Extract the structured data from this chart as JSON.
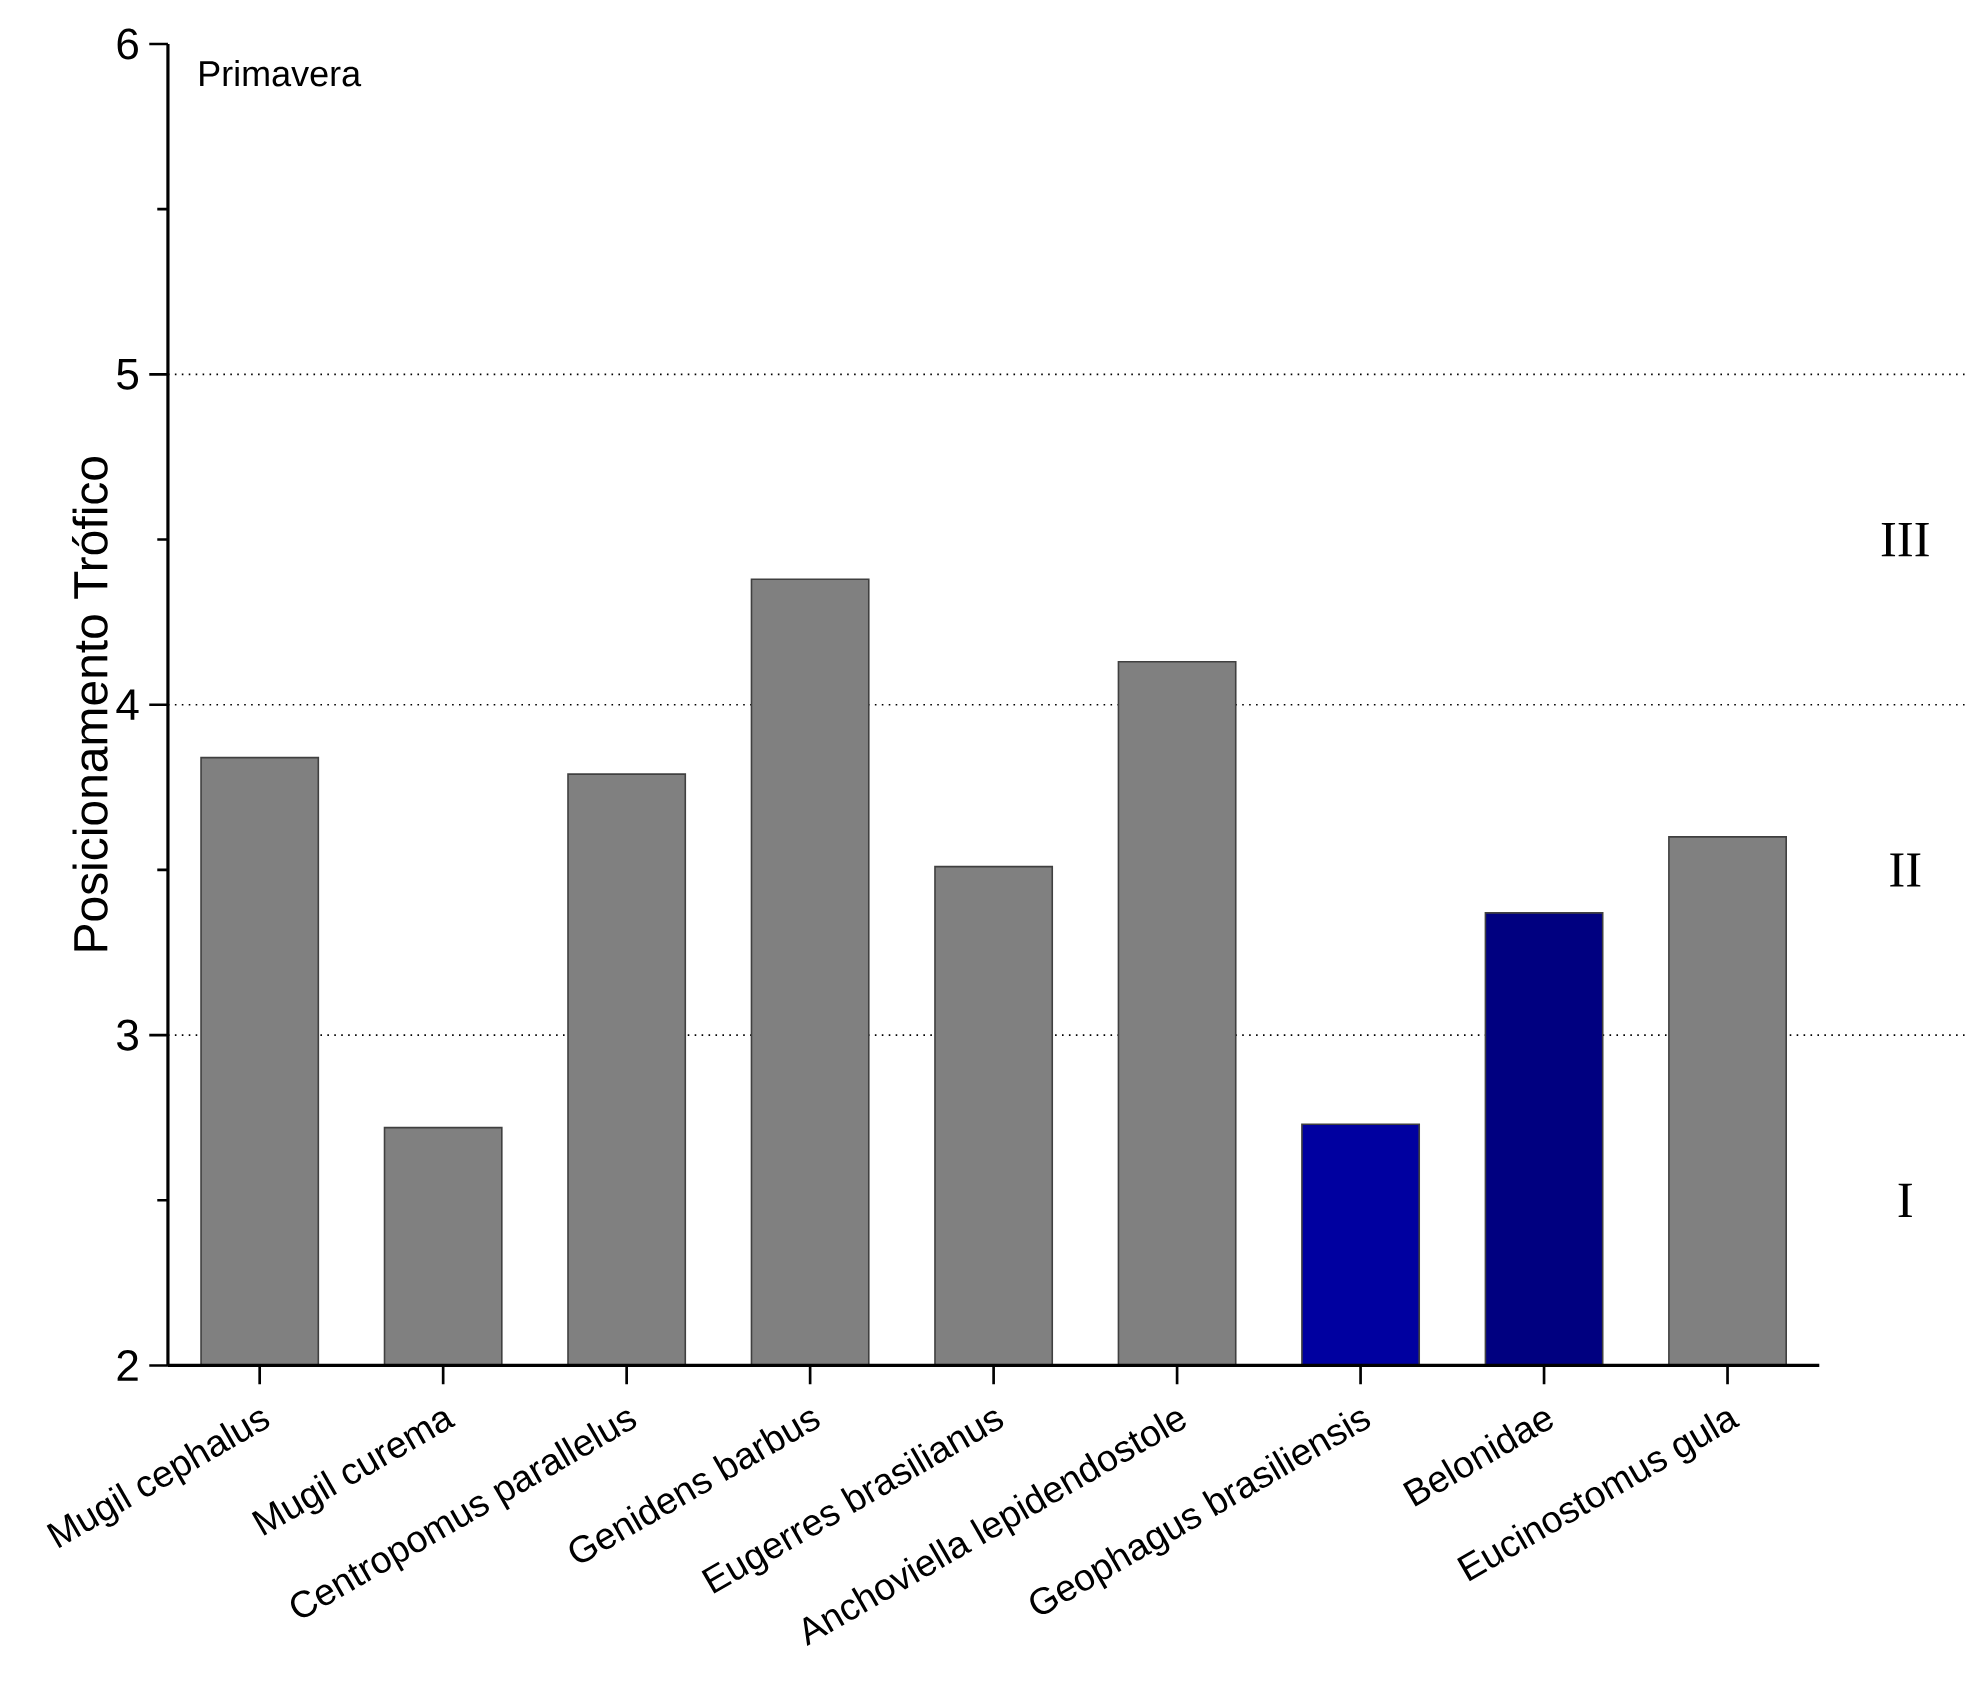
{
  "chart_data": {
    "type": "bar",
    "title": "Primavera",
    "ylabel": "Posicionamento Trófico",
    "categories": [
      "Mugil cephalus",
      "Mugil curema",
      "Centropomus parallelus",
      "Genidens barbus",
      "Eugerres brasilianus",
      "Anchoviella lepidendostole",
      "Geophagus brasiliensis",
      "Belonidae",
      "Eucinostomus gula"
    ],
    "values": [
      3.84,
      2.72,
      3.79,
      4.38,
      3.51,
      4.13,
      2.73,
      3.37,
      3.6
    ],
    "colors": [
      "#808080",
      "#808080",
      "#808080",
      "#808080",
      "#808080",
      "#808080",
      "#0000a0",
      "#000080",
      "#808080"
    ],
    "ylim": [
      2,
      6
    ],
    "yticks": [
      2,
      3,
      4,
      5,
      6
    ],
    "ref_lines": [
      {
        "axis": "y",
        "value": 3,
        "line_style": "dotted",
        "label": "I"
      },
      {
        "axis": "y",
        "value": 4,
        "line_style": "dotted",
        "label": "II"
      },
      {
        "axis": "y",
        "value": 5,
        "line_style": "dotted",
        "label": "III"
      }
    ],
    "grid": false
  }
}
